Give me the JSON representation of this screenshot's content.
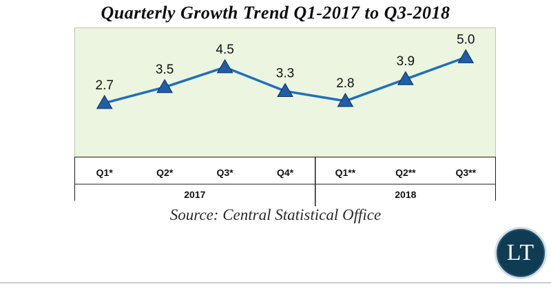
{
  "title": "Quarterly Growth Trend Q1-2017 to Q3-2018",
  "source": "Source: Central Statistical Office",
  "logo_text": "LT",
  "chart_data": {
    "type": "line",
    "title": "Quarterly Growth Trend Q1-2017 to Q3-2018",
    "categories": [
      "Q1*",
      "Q2*",
      "Q3*",
      "Q4*",
      "Q1**",
      "Q2**",
      "Q3**"
    ],
    "groups": [
      {
        "label": "2017",
        "count": 4
      },
      {
        "label": "2018",
        "count": 3
      }
    ],
    "series": [
      {
        "values": [
          2.7,
          3.5,
          4.5,
          3.3,
          2.8,
          3.9,
          5.0
        ],
        "labels": [
          "2.7",
          "3.5",
          "4.5",
          "3.3",
          "2.8",
          "3.9",
          "5.0"
        ]
      }
    ],
    "ylim": [
      0,
      6.5
    ],
    "grid": false,
    "colors": {
      "line": "#1f6fbd",
      "marker": "#1f5ea8",
      "plot_bg": "#ebf5df"
    }
  }
}
